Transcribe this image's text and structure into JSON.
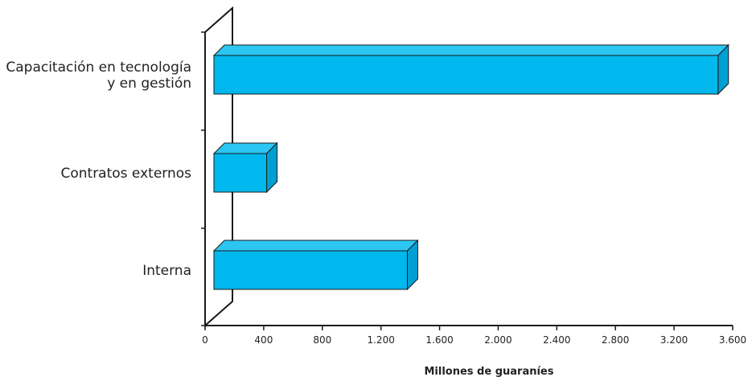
{
  "chart_data": {
    "type": "bar",
    "orientation": "horizontal",
    "style": "3d",
    "categories": [
      [
        "Capacitación en tecnología",
        "y en gestión"
      ],
      [
        "Contratos externos"
      ],
      [
        "Interna"
      ]
    ],
    "values": [
      3500,
      420,
      1380
    ],
    "xlabel": "Millones de guaraníes",
    "xlim": [
      0,
      3600
    ],
    "xticks": [
      0,
      400,
      800,
      1200,
      1600,
      2000,
      2400,
      2800,
      3200,
      3600
    ],
    "xtick_labels": [
      "0",
      "400",
      "800",
      "1.200",
      "1.600",
      "2.000",
      "2.400",
      "2.800",
      "3.200",
      "3.600"
    ],
    "grid": false,
    "colors": {
      "front": "#00b8ee",
      "top": "#2cc6f2",
      "side": "#009fd2",
      "outline": "#1a1a1a"
    }
  }
}
